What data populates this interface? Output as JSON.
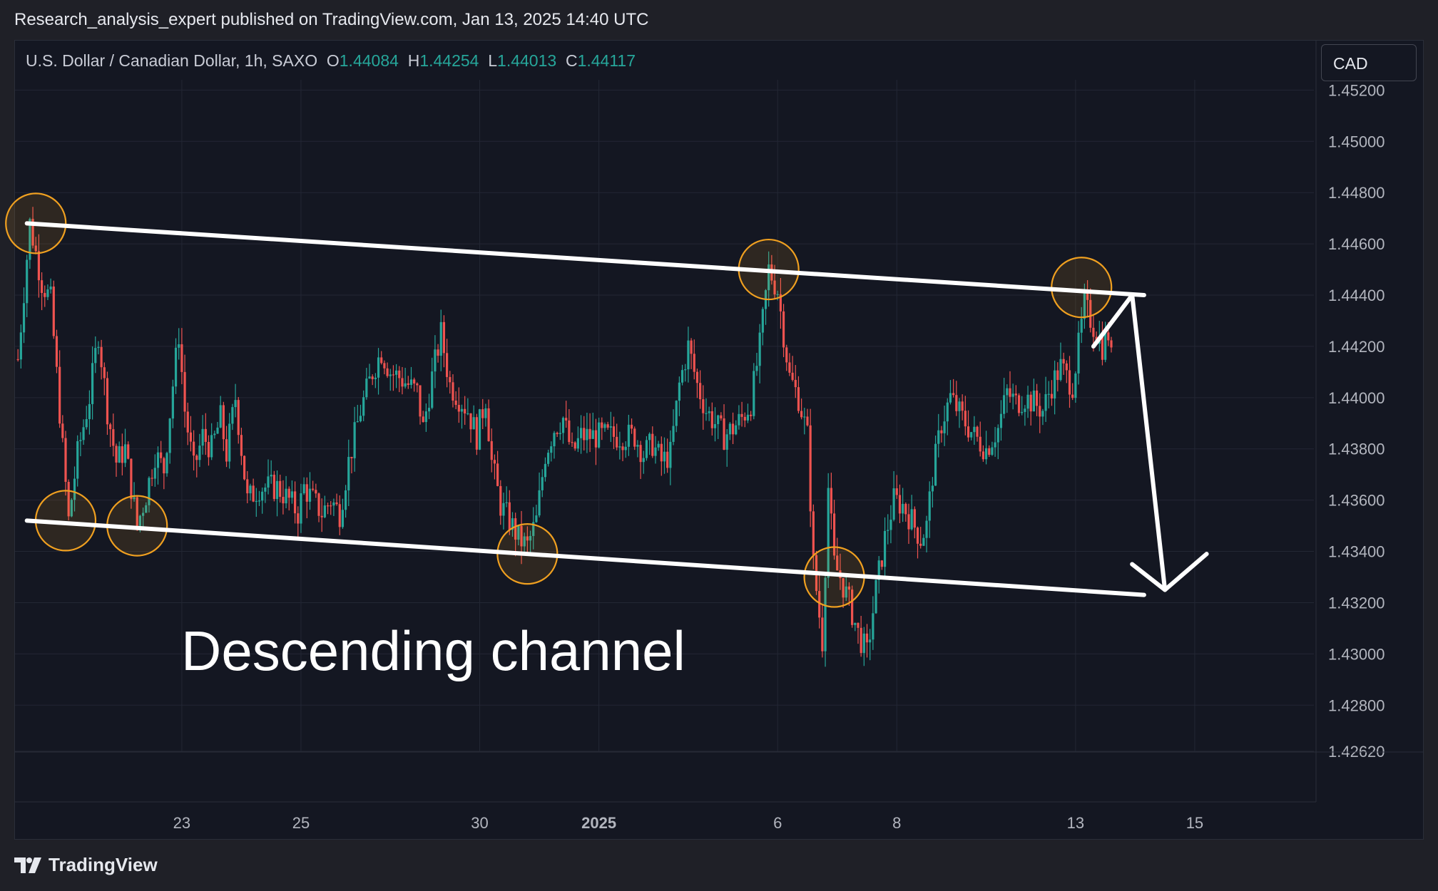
{
  "publisher_line": "Research_analysis_expert published on TradingView.com, Jan 13, 2025 14:40 UTC",
  "legend": {
    "symbol": "U.S. Dollar / Canadian Dollar, 1h, SAXO",
    "open_label": "O",
    "open": "1.44084",
    "high_label": "H",
    "high": "1.44254",
    "low_label": "L",
    "low": "1.44013",
    "close_label": "C",
    "close": "1.44117"
  },
  "currency_badge": "CAD",
  "brand": "TradingView",
  "colors": {
    "background": "#141722",
    "grid": "#232734",
    "up": "#26a69a",
    "down": "#ef5350",
    "channel": "#ffffff",
    "highlight": "#f0a020",
    "axis_text": "#b2b5be"
  },
  "chart_data": {
    "type": "candlestick",
    "title": "U.S. Dollar / Canadian Dollar, 1h, SAXO",
    "ylim": [
      1.4262,
      1.4524
    ],
    "y_ticks": [
      "1.45200",
      "1.45000",
      "1.44800",
      "1.44600",
      "1.44400",
      "1.44200",
      "1.44000",
      "1.43800",
      "1.43600",
      "1.43400",
      "1.43200",
      "1.43000",
      "1.42800",
      "1.42620"
    ],
    "x_ticks": [
      {
        "label": "23",
        "day": 2.0,
        "bold": false
      },
      {
        "label": "25",
        "day": 4.0,
        "bold": false
      },
      {
        "label": "30",
        "day": 7.0,
        "bold": false
      },
      {
        "label": "2025",
        "day": 9.0,
        "bold": true
      },
      {
        "label": "6",
        "day": 12.0,
        "bold": false
      },
      {
        "label": "8",
        "day": 14.0,
        "bold": false
      },
      {
        "label": "13",
        "day": 17.0,
        "bold": false
      },
      {
        "label": "15",
        "day": 19.0,
        "bold": false
      }
    ],
    "xlim": [
      -0.8,
      21.0
    ],
    "grid": true,
    "annotation_text": "Descending channel",
    "channel_upper": [
      [
        -0.6,
        1.4468
      ],
      [
        18.15,
        1.444
      ]
    ],
    "channel_lower": [
      [
        -0.6,
        1.4352
      ],
      [
        18.15,
        1.4323
      ]
    ],
    "highlight_points": [
      [
        -0.45,
        1.4468
      ],
      [
        0.05,
        1.4352
      ],
      [
        1.25,
        1.435
      ],
      [
        7.8,
        1.4339
      ],
      [
        11.85,
        1.445
      ],
      [
        12.95,
        1.433
      ],
      [
        17.1,
        1.4443
      ]
    ],
    "projection_arrows": [
      [
        [
          17.3,
          1.442
        ],
        [
          17.95,
          1.444
        ]
      ],
      [
        [
          17.95,
          1.444
        ],
        [
          18.5,
          1.4325
        ],
        [
          19.2,
          1.4339
        ]
      ]
    ],
    "path": [
      [
        -0.75,
        1.4415
      ],
      [
        -0.55,
        1.4468
      ],
      [
        -0.35,
        1.4445
      ],
      [
        -0.2,
        1.4438
      ],
      [
        0.0,
        1.438
      ],
      [
        0.1,
        1.4352
      ],
      [
        0.25,
        1.4378
      ],
      [
        0.45,
        1.44
      ],
      [
        0.6,
        1.4425
      ],
      [
        0.75,
        1.4395
      ],
      [
        0.9,
        1.4375
      ],
      [
        1.05,
        1.438
      ],
      [
        1.25,
        1.435
      ],
      [
        1.4,
        1.4362
      ],
      [
        1.55,
        1.4378
      ],
      [
        1.7,
        1.4372
      ],
      [
        1.85,
        1.4405
      ],
      [
        1.95,
        1.4425
      ],
      [
        2.05,
        1.4395
      ],
      [
        2.2,
        1.4372
      ],
      [
        2.35,
        1.4385
      ],
      [
        2.5,
        1.438
      ],
      [
        2.65,
        1.4392
      ],
      [
        2.75,
        1.4378
      ],
      [
        2.9,
        1.44
      ],
      [
        3.0,
        1.438
      ],
      [
        3.1,
        1.436
      ],
      [
        3.3,
        1.4365
      ],
      [
        3.6,
        1.4365
      ],
      [
        3.8,
        1.436
      ],
      [
        3.95,
        1.4355
      ],
      [
        4.05,
        1.4365
      ],
      [
        4.2,
        1.436
      ],
      [
        4.35,
        1.4355
      ],
      [
        4.5,
        1.436
      ],
      [
        4.65,
        1.4355
      ],
      [
        4.8,
        1.4375
      ],
      [
        5.0,
        1.4395
      ],
      [
        5.2,
        1.441
      ],
      [
        5.35,
        1.4418
      ],
      [
        5.5,
        1.441
      ],
      [
        5.65,
        1.4408
      ],
      [
        5.8,
        1.4405
      ],
      [
        5.95,
        1.4402
      ],
      [
        6.05,
        1.4388
      ],
      [
        6.2,
        1.4408
      ],
      [
        6.35,
        1.4425
      ],
      [
        6.5,
        1.4405
      ],
      [
        6.65,
        1.44
      ],
      [
        6.8,
        1.4395
      ],
      [
        6.95,
        1.4385
      ],
      [
        7.1,
        1.44
      ],
      [
        7.2,
        1.4375
      ],
      [
        7.35,
        1.4358
      ],
      [
        7.5,
        1.4352
      ],
      [
        7.65,
        1.4345
      ],
      [
        7.8,
        1.4342
      ],
      [
        7.95,
        1.4352
      ],
      [
        8.1,
        1.4378
      ],
      [
        8.25,
        1.4388
      ],
      [
        8.4,
        1.4392
      ],
      [
        8.55,
        1.4378
      ],
      [
        8.7,
        1.4385
      ],
      [
        9.3,
        1.4385
      ],
      [
        9.6,
        1.4385
      ],
      [
        9.75,
        1.4378
      ],
      [
        9.9,
        1.4382
      ],
      [
        10.05,
        1.4375
      ],
      [
        10.2,
        1.4378
      ],
      [
        10.35,
        1.4405
      ],
      [
        10.5,
        1.442
      ],
      [
        10.65,
        1.4405
      ],
      [
        10.8,
        1.4395
      ],
      [
        10.95,
        1.439
      ],
      [
        11.1,
        1.4385
      ],
      [
        11.25,
        1.4388
      ],
      [
        11.4,
        1.4392
      ],
      [
        11.55,
        1.4398
      ],
      [
        11.7,
        1.442
      ],
      [
        11.85,
        1.445
      ],
      [
        12.0,
        1.4442
      ],
      [
        12.1,
        1.4425
      ],
      [
        12.2,
        1.4408
      ],
      [
        12.35,
        1.44
      ],
      [
        12.5,
        1.4385
      ],
      [
        12.6,
        1.4335
      ],
      [
        12.75,
        1.4305
      ],
      [
        12.85,
        1.4365
      ],
      [
        12.95,
        1.4335
      ],
      [
        13.05,
        1.433
      ],
      [
        13.2,
        1.432
      ],
      [
        13.35,
        1.4308
      ],
      [
        13.5,
        1.43
      ],
      [
        13.65,
        1.4325
      ],
      [
        13.8,
        1.4345
      ],
      [
        13.95,
        1.436
      ],
      [
        14.1,
        1.4358
      ],
      [
        14.25,
        1.4352
      ],
      [
        14.4,
        1.4345
      ],
      [
        14.5,
        1.435
      ],
      [
        14.6,
        1.437
      ],
      [
        14.75,
        1.439
      ],
      [
        14.9,
        1.44
      ],
      [
        15.1,
        1.4392
      ],
      [
        15.3,
        1.4385
      ],
      [
        15.5,
        1.438
      ],
      [
        15.7,
        1.4388
      ],
      [
        15.85,
        1.4402
      ],
      [
        16.0,
        1.4398
      ],
      [
        16.15,
        1.44
      ],
      [
        16.3,
        1.4398
      ],
      [
        16.45,
        1.4395
      ],
      [
        16.6,
        1.4405
      ],
      [
        16.75,
        1.4412
      ],
      [
        16.85,
        1.4408
      ],
      [
        16.95,
        1.4405
      ],
      [
        17.05,
        1.442
      ],
      [
        17.15,
        1.4436
      ],
      [
        17.3,
        1.4428
      ],
      [
        17.45,
        1.442
      ],
      [
        17.55,
        1.4425
      ],
      [
        17.65,
        1.4405
      ]
    ]
  }
}
